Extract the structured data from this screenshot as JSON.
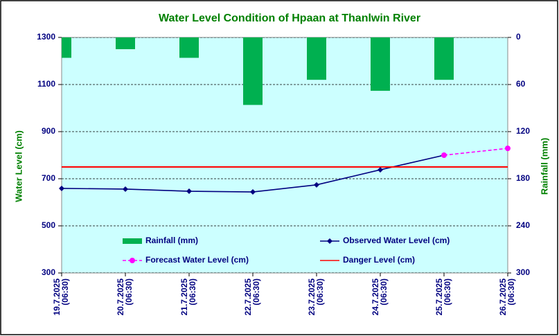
{
  "chart_data": {
    "type": "bar_line",
    "title": "Water Level Condition of Hpaan at Thanlwin River",
    "y_label": "Water Level (cm)",
    "y2_label": "Rainfall (mm)",
    "categories": [
      "19.7.2025\n(06:30)",
      "20.7.2025\n(06:30)",
      "21.7.2025\n(06:30)",
      "22.7.2025\n(06:30)",
      "23.7.2025\n(06:30)",
      "24.7.2025\n(06:30)",
      "25.7.2025\n(06:30)",
      "26.7.2025\n(06:30)"
    ],
    "ylim": [
      300,
      1300
    ],
    "yticks": [
      300,
      500,
      700,
      900,
      1100,
      1300
    ],
    "y2lim": [
      300,
      0
    ],
    "y2ticks": [
      0,
      60,
      120,
      180,
      240,
      300
    ],
    "grid": true,
    "series": [
      {
        "name": "Rainfall (mm)",
        "type": "bar",
        "axis": "y2",
        "color": "#00b050",
        "values": [
          26,
          15,
          26,
          86,
          54,
          68,
          54,
          null
        ]
      },
      {
        "name": "Observed Water Level (cm)",
        "type": "line",
        "marker": "diamond",
        "color": "#000080",
        "values": [
          659,
          656,
          647,
          644,
          674,
          738,
          800,
          null
        ]
      },
      {
        "name": "Forecast Water Level (cm)",
        "type": "line",
        "marker": "circle",
        "dashed": true,
        "color": "#ff00ff",
        "values": [
          null,
          null,
          null,
          null,
          null,
          null,
          800,
          829
        ]
      },
      {
        "name": "Danger Level (cm)",
        "type": "line",
        "color": "#ff0000",
        "values": [
          750,
          750,
          750,
          750,
          750,
          750,
          750,
          750
        ]
      }
    ]
  }
}
